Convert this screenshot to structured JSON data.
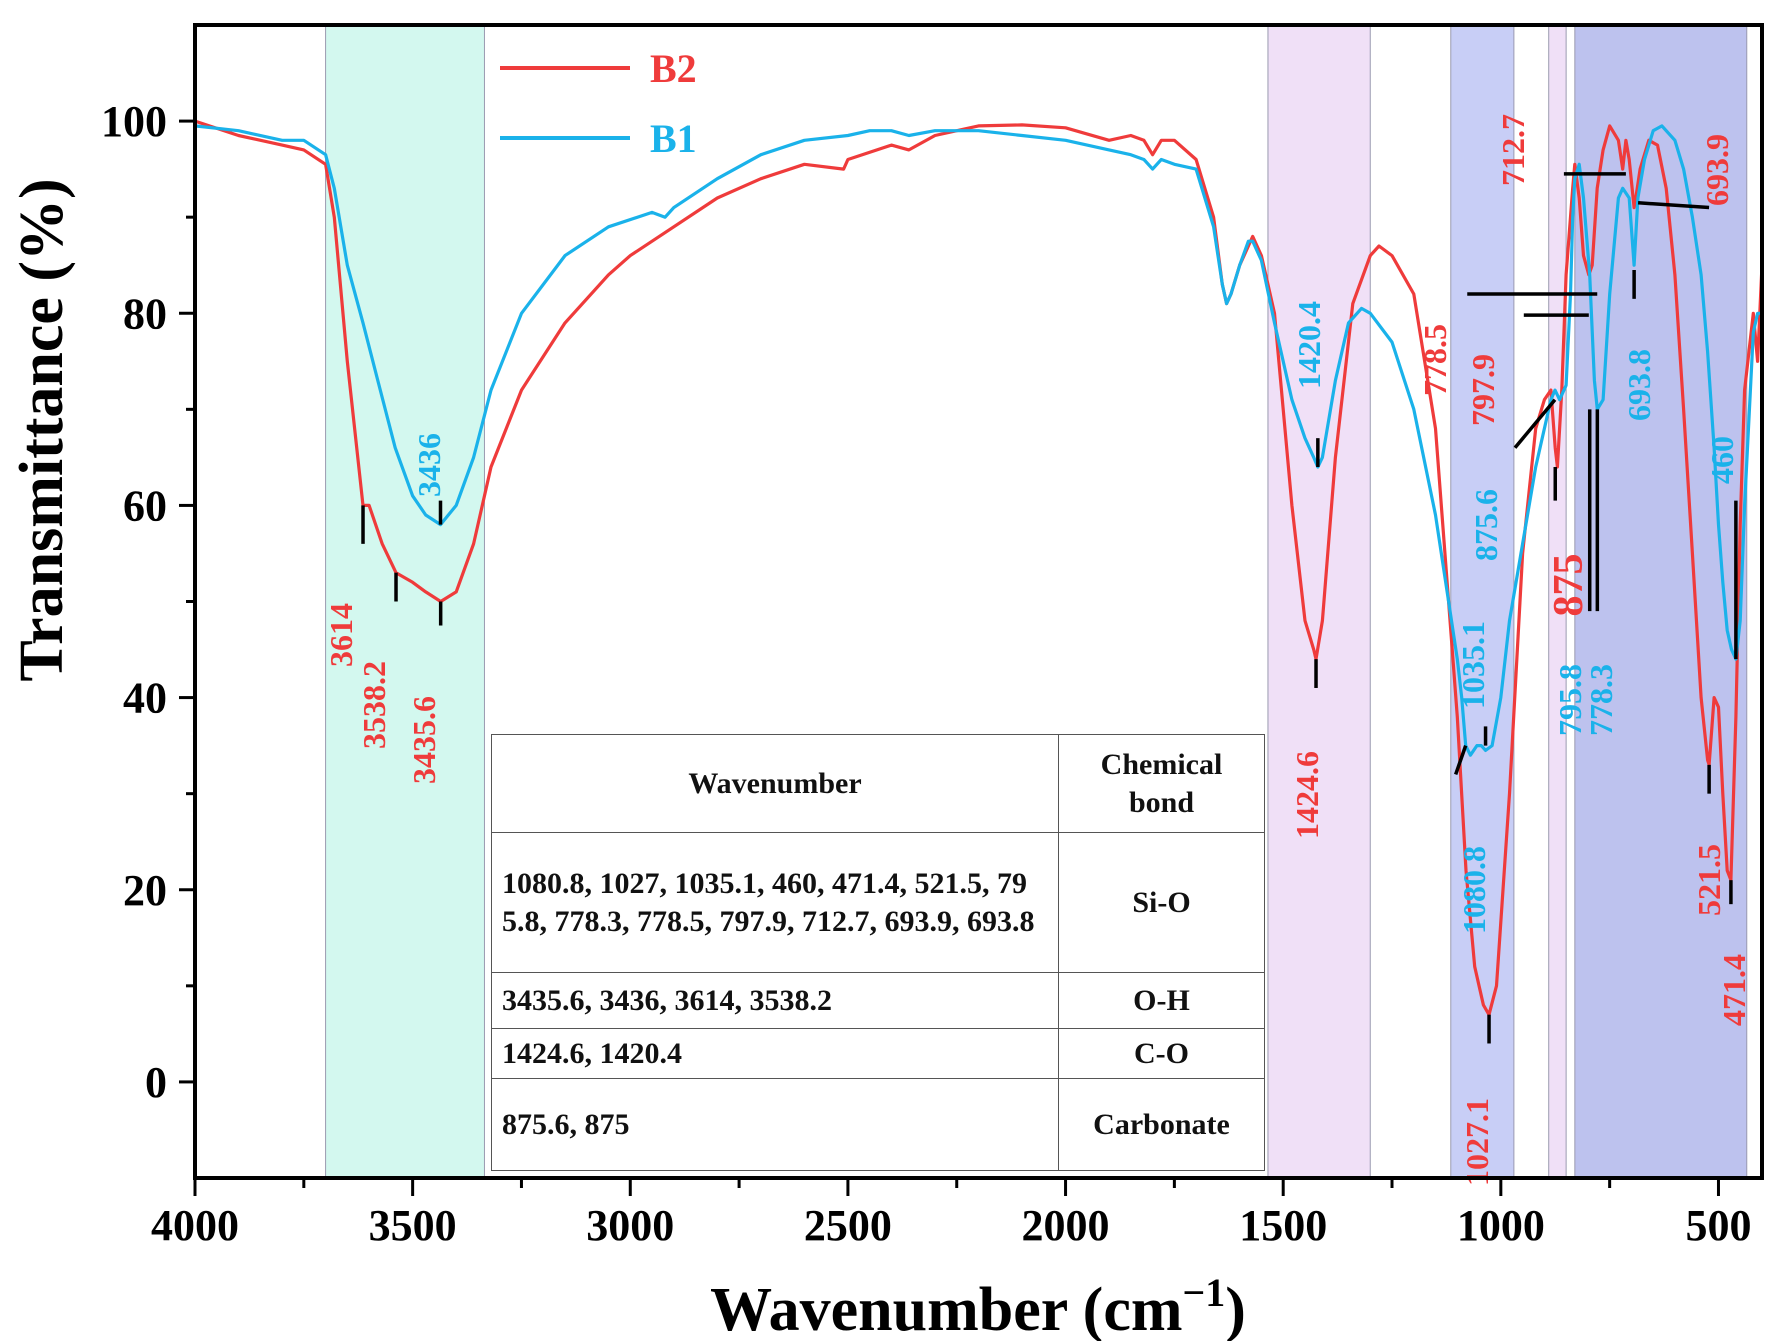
{
  "chart_data": {
    "type": "line",
    "title": "",
    "xlabel": "Wavenumber (cm",
    "xlabel_sup": "−1",
    "xlabel_close": ")",
    "ylabel": "Transmittance (%)",
    "xlim": [
      4000,
      400
    ],
    "ylim": [
      -10,
      110
    ],
    "x_reversed": true,
    "xticks": [
      4000,
      3500,
      3000,
      2500,
      2000,
      1500,
      1000,
      500
    ],
    "yticks": [
      0,
      20,
      40,
      60,
      80,
      100
    ],
    "legend": {
      "placement": "top-left",
      "entries": [
        "B2",
        "B1"
      ]
    },
    "colors": {
      "B2": "#ef3b3b",
      "B1": "#1ab2ea"
    },
    "bands": [
      {
        "from": 3700,
        "to": 3335,
        "color": "#a8f2df",
        "opacity": 0.5
      },
      {
        "from": 1535,
        "to": 1300,
        "color": "#e4c6f0",
        "opacity": 0.55
      },
      {
        "from": 1115,
        "to": 970,
        "color": "#9aa6ef",
        "opacity": 0.55
      },
      {
        "from": 890,
        "to": 850,
        "color": "#e4c6f0",
        "opacity": 0.55
      },
      {
        "from": 830,
        "to": 435,
        "color": "#7c86dd",
        "opacity": 0.5
      }
    ],
    "series": [
      {
        "name": "B2",
        "x": [
          4000,
          3900,
          3800,
          3750,
          3700,
          3680,
          3650,
          3614,
          3600,
          3570,
          3538.2,
          3500,
          3470,
          3435.6,
          3400,
          3360,
          3320,
          3250,
          3150,
          3050,
          3000,
          2900,
          2800,
          2700,
          2600,
          2510,
          2500,
          2400,
          2360,
          2300,
          2200,
          2100,
          2000,
          1900,
          1850,
          1820,
          1800,
          1780,
          1750,
          1700,
          1660,
          1640,
          1630,
          1620,
          1600,
          1580,
          1570,
          1550,
          1520,
          1480,
          1450,
          1430,
          1424.6,
          1410,
          1380,
          1340,
          1300,
          1280,
          1250,
          1200,
          1150,
          1100,
          1080,
          1060,
          1040,
          1027.1,
          1010,
          980,
          950,
          920,
          900,
          885,
          875,
          870,
          860,
          850,
          835,
          830,
          820,
          810,
          797.9,
          790,
          778.5,
          765,
          750,
          730,
          720,
          712.7,
          705,
          693.9,
          690,
          680,
          660,
          640,
          620,
          600,
          580,
          560,
          540,
          525,
          521.5,
          510,
          500,
          490,
          480,
          471.4,
          460,
          450,
          440,
          420,
          410,
          400
        ],
        "values": [
          100,
          98.5,
          97.5,
          97,
          95.5,
          90,
          75,
          60,
          60,
          56,
          53,
          52,
          51,
          50,
          51,
          56,
          64,
          72,
          79,
          84,
          86,
          89,
          92,
          94,
          95.5,
          95,
          96,
          97.5,
          97,
          98.5,
          99.5,
          99.6,
          99.3,
          98,
          98.5,
          98,
          96.5,
          98,
          98,
          96,
          90,
          83,
          81,
          82,
          85,
          87,
          88,
          86,
          80,
          60,
          48,
          45,
          44,
          48,
          65,
          81,
          86,
          87,
          86,
          82,
          68,
          38,
          22,
          12,
          8,
          7,
          10,
          30,
          55,
          68,
          71,
          72,
          66,
          64,
          72,
          84,
          93,
          95.5,
          92,
          86,
          84,
          85,
          93,
          97,
          99.5,
          98,
          95,
          98,
          96,
          91,
          92,
          95,
          98,
          97.5,
          93,
          84,
          70,
          55,
          40,
          33.5,
          33,
          40,
          39,
          30,
          22,
          21,
          38,
          58,
          72,
          80,
          75,
          85
        ]
      },
      {
        "name": "B1",
        "x": [
          4000,
          3900,
          3800,
          3750,
          3700,
          3680,
          3650,
          3614,
          3580,
          3540,
          3500,
          3470,
          3436,
          3400,
          3360,
          3320,
          3250,
          3150,
          3050,
          2950,
          2920,
          2900,
          2800,
          2700,
          2600,
          2500,
          2450,
          2400,
          2360,
          2300,
          2200,
          2100,
          2000,
          1900,
          1850,
          1820,
          1800,
          1780,
          1750,
          1700,
          1660,
          1640,
          1630,
          1620,
          1600,
          1580,
          1570,
          1550,
          1520,
          1480,
          1450,
          1430,
          1420.4,
          1410,
          1380,
          1350,
          1320,
          1300,
          1250,
          1200,
          1150,
          1120,
          1100,
          1090,
          1080.8,
          1070,
          1055,
          1045,
          1035.1,
          1020,
          1000,
          980,
          950,
          920,
          900,
          885,
          875.6,
          865,
          850,
          840,
          835,
          830,
          820,
          810,
          795.8,
          785,
          778.3,
          765,
          750,
          730,
          720,
          705,
          693.8,
          685,
          670,
          650,
          630,
          620,
          600,
          580,
          560,
          540,
          525,
          510,
          500,
          490,
          480,
          470,
          460,
          450,
          440,
          420,
          410,
          400
        ],
        "values": [
          99.5,
          99,
          98,
          98,
          96.5,
          93,
          85,
          79,
          73,
          66,
          61,
          59,
          58,
          60,
          65,
          72,
          80,
          86,
          89,
          90.5,
          90,
          91,
          94,
          96.5,
          98,
          98.5,
          99,
          99,
          98.5,
          99,
          99,
          98.5,
          98,
          97,
          96.5,
          96,
          95,
          96,
          95.5,
          95,
          89,
          83,
          81,
          82,
          85,
          87.5,
          87.5,
          85.5,
          79,
          71,
          67,
          65,
          64,
          65,
          73,
          79,
          80.5,
          80,
          77,
          70,
          59,
          50,
          44,
          40,
          35,
          34,
          35,
          35,
          34.5,
          35,
          40,
          48,
          56,
          64,
          68,
          71,
          72,
          71,
          72.5,
          82,
          90,
          94,
          95.5,
          92,
          84,
          73,
          70,
          71,
          82,
          92,
          93,
          92,
          85,
          92,
          96,
          99,
          99.5,
          99,
          98,
          95,
          90,
          84,
          76,
          66,
          58,
          52,
          47,
          45,
          44,
          48,
          60,
          78,
          80,
          80
        ]
      }
    ],
    "annotations": [
      {
        "text": "3614",
        "x": 3614,
        "y": 60,
        "series": "B2"
      },
      {
        "text": "3538.2",
        "x": 3538.2,
        "y": 53,
        "series": "B2"
      },
      {
        "text": "3435.6",
        "x": 3435.6,
        "y": 50,
        "series": "B2"
      },
      {
        "text": "3436",
        "x": 3436,
        "y": 58,
        "series": "B1"
      },
      {
        "text": "1420.4",
        "x": 1420.4,
        "y": 64,
        "series": "B1"
      },
      {
        "text": "1424.6",
        "x": 1424.6,
        "y": 44,
        "series": "B2"
      },
      {
        "text": "1035.1",
        "x": 1035.1,
        "y": 34.5,
        "series": "B1"
      },
      {
        "text": "1080.8",
        "x": 1080.8,
        "y": 35,
        "series": "B1"
      },
      {
        "text": "1027.1",
        "x": 1027.1,
        "y": 7,
        "series": "B2"
      },
      {
        "text": "875.6",
        "x": 875.6,
        "y": 72,
        "series": "B1"
      },
      {
        "text": "875",
        "x": 875,
        "y": 64,
        "series": "B2"
      },
      {
        "text": "795.8",
        "x": 795.8,
        "y": 70,
        "series": "B1"
      },
      {
        "text": "778.3",
        "x": 778.3,
        "y": 70,
        "series": "B1"
      },
      {
        "text": "778.5",
        "x": 778.5,
        "y": 84,
        "series": "B2"
      },
      {
        "text": "797.9",
        "x": 797.9,
        "y": 80,
        "series": "B2"
      },
      {
        "text": "712.7",
        "x": 712.7,
        "y": 95,
        "series": "B2"
      },
      {
        "text": "693.9",
        "x": 693.9,
        "y": 91,
        "series": "B2"
      },
      {
        "text": "693.8",
        "x": 693.8,
        "y": 85,
        "series": "B1"
      },
      {
        "text": "460",
        "x": 460,
        "y": 44,
        "series": "B1"
      },
      {
        "text": "521.5",
        "x": 521.5,
        "y": 33,
        "series": "B2"
      },
      {
        "text": "471.4",
        "x": 471.4,
        "y": 21,
        "series": "B2"
      }
    ]
  },
  "table": {
    "headers": [
      "Wavenumber",
      "Chemical bond"
    ],
    "rows": [
      {
        "wavenumbers": "1080.8, 1027, 1035.1, 460, 471.4, 521.5, 795.8, 778.3, 778.5, 797.9, 712.7, 693.9, 693.8",
        "bond": "Si-O"
      },
      {
        "wavenumbers": "3435.6, 3436, 3614, 3538.2",
        "bond": "O-H"
      },
      {
        "wavenumbers": "1424.6, 1420.4",
        "bond": "C-O"
      },
      {
        "wavenumbers": "875.6, 875",
        "bond": "Carbonate"
      }
    ]
  }
}
